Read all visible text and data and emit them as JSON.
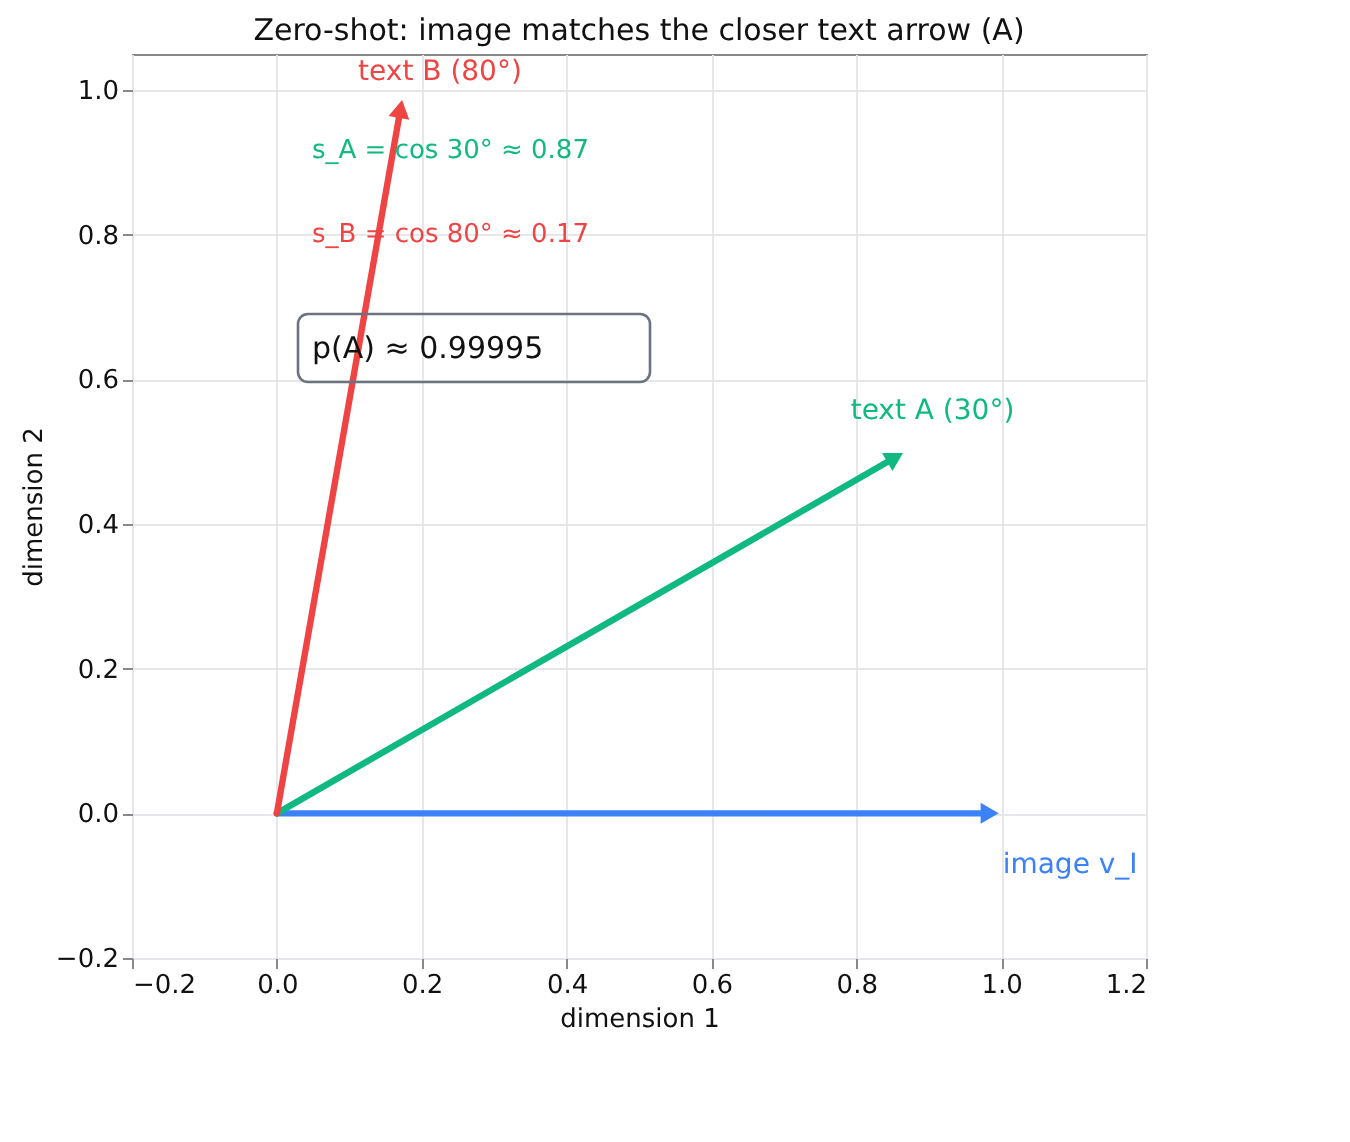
{
  "chart_data": {
    "type": "line",
    "title": "Zero-shot: image matches the closer text arrow (A)",
    "xlabel": "dimension 1",
    "ylabel": "dimension 2",
    "series": [
      {
        "name": "image v_I",
        "color": "#3b82f6",
        "x": [
          0,
          0.98
        ],
        "values": [
          0,
          0
        ]
      },
      {
        "name": "text A  (30°)",
        "color": "#10b981",
        "x": [
          0,
          0.85
        ],
        "values": [
          0,
          0.49
        ]
      },
      {
        "name": "text B  (80°)",
        "color": "#ef4444",
        "x": [
          0,
          0.17
        ],
        "values": [
          0,
          0.97
        ]
      }
    ],
    "annotations": [
      "s_A = cos 30° ≈ 0.87",
      "s_B = cos 80° ≈ 0.17",
      "p(A) ≈ 0.99995"
    ],
    "xlim": [
      -0.2,
      1.2
    ],
    "ylim": [
      -0.2,
      1.05
    ],
    "xticks": [
      -0.2,
      {
        "value": 0,
        "label": "0.0"
      },
      0.2,
      0.4,
      0.6,
      0.8,
      {
        "value": 1,
        "label": "1.0"
      },
      1.2
    ],
    "yticks": [
      -0.2,
      {
        "value": 0,
        "label": "0.0"
      },
      0.2,
      0.4,
      0.6,
      0.8,
      {
        "value": 1,
        "label": "1.0"
      }
    ],
    "grid": true,
    "legend": false,
    "marker": "triangle",
    "line_style": "solid"
  }
}
